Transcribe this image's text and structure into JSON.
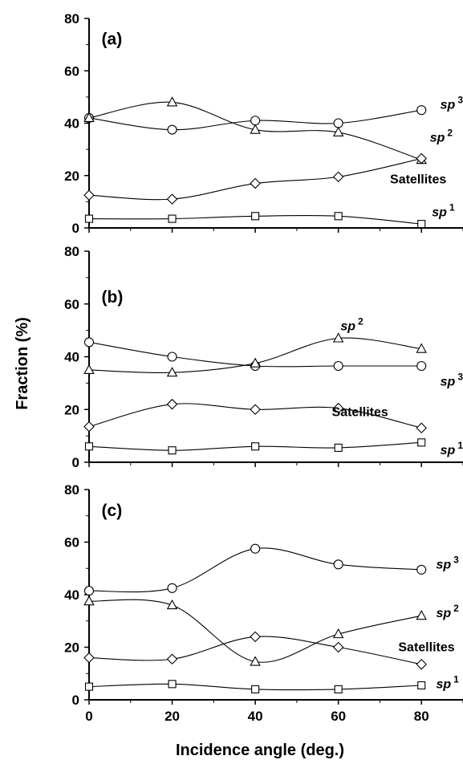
{
  "figure": {
    "ylabel": "Fraction (%)",
    "xlabel": "Incidence angle (deg.)"
  },
  "chart_data": [
    {
      "type": "line",
      "panel_label": "(a)",
      "x": [
        0,
        20,
        40,
        60,
        80
      ],
      "xlim": [
        0,
        90
      ],
      "ylim": [
        0,
        80
      ],
      "xticks": [
        "0",
        "20",
        "40",
        "60",
        "80"
      ],
      "yticks": [
        "0",
        "20",
        "40",
        "60",
        "80"
      ],
      "series": [
        {
          "name": "sp3",
          "base": "sp",
          "sup": "3",
          "marker": "circle",
          "values": [
            42,
            37.5,
            41,
            40,
            45
          ]
        },
        {
          "name": "sp2",
          "base": "sp",
          "sup": "2",
          "marker": "triangle",
          "values": [
            42,
            48,
            37.5,
            36.5,
            26
          ]
        },
        {
          "name": "Satellites",
          "base": "Satellites",
          "sup": "",
          "marker": "diamond",
          "values": [
            12.5,
            11,
            17,
            19.5,
            26.5
          ]
        },
        {
          "name": "sp1",
          "base": "sp",
          "sup": "1",
          "marker": "square",
          "values": [
            3.5,
            3.5,
            4.5,
            4.5,
            1.5
          ]
        }
      ]
    },
    {
      "type": "line",
      "panel_label": "(b)",
      "x": [
        0,
        20,
        40,
        60,
        80
      ],
      "xlim": [
        0,
        90
      ],
      "ylim": [
        0,
        80
      ],
      "xticks": [
        "0",
        "20",
        "40",
        "60",
        "80"
      ],
      "yticks": [
        "0",
        "20",
        "40",
        "60",
        "80"
      ],
      "series": [
        {
          "name": "sp3",
          "base": "sp",
          "sup": "3",
          "marker": "circle",
          "values": [
            45.5,
            40,
            36.5,
            36.5,
            36.5
          ]
        },
        {
          "name": "sp2",
          "base": "sp",
          "sup": "2",
          "marker": "triangle",
          "values": [
            35,
            34,
            37.5,
            47,
            43
          ]
        },
        {
          "name": "Satellites",
          "base": "Satellites",
          "sup": "",
          "marker": "diamond",
          "values": [
            13.5,
            22,
            20,
            20.5,
            13
          ]
        },
        {
          "name": "sp1",
          "base": "sp",
          "sup": "1",
          "marker": "square",
          "values": [
            6,
            4.5,
            6,
            5.5,
            7.5
          ]
        }
      ]
    },
    {
      "type": "line",
      "panel_label": "(c)",
      "x": [
        0,
        20,
        40,
        60,
        80
      ],
      "xlim": [
        0,
        90
      ],
      "ylim": [
        0,
        80
      ],
      "xticks": [
        "0",
        "20",
        "40",
        "60",
        "80"
      ],
      "yticks": [
        "0",
        "20",
        "40",
        "60",
        "80"
      ],
      "series": [
        {
          "name": "sp3",
          "base": "sp",
          "sup": "3",
          "marker": "circle",
          "values": [
            41.5,
            42.5,
            57.5,
            51.5,
            49.5
          ]
        },
        {
          "name": "sp2",
          "base": "sp",
          "sup": "2",
          "marker": "triangle",
          "values": [
            37.5,
            36,
            14.5,
            25,
            32
          ]
        },
        {
          "name": "Satellites",
          "base": "Satellites",
          "sup": "",
          "marker": "diamond",
          "values": [
            16,
            15.5,
            24,
            20,
            13.5
          ]
        },
        {
          "name": "sp1",
          "base": "sp",
          "sup": "1",
          "marker": "square",
          "values": [
            5,
            6,
            4,
            4,
            5.5
          ]
        }
      ]
    }
  ]
}
